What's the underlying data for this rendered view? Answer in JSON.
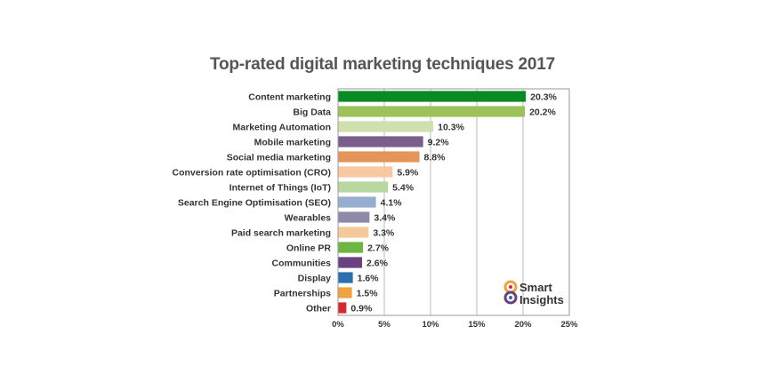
{
  "chart_data": {
    "type": "bar",
    "orientation": "horizontal",
    "title": "Top-rated digital marketing techniques 2017",
    "xlabel": "",
    "ylabel": "",
    "xlim": [
      0,
      25
    ],
    "x_ticks": [
      "0%",
      "5%",
      "10%",
      "15%",
      "20%",
      "25%"
    ],
    "grid": true,
    "categories": [
      "Content marketing",
      "Big Data",
      "Marketing Automation",
      "Mobile marketing",
      "Social media marketing",
      "Conversion rate optimisation (CRO)",
      "Internet of Things (IoT)",
      "Search Engine Optimisation (SEO)",
      "Wearables",
      "Paid search marketing",
      "Online PR",
      "Communities",
      "Display",
      "Partnerships",
      "Other"
    ],
    "values": [
      20.3,
      20.2,
      10.3,
      9.2,
      8.8,
      5.9,
      5.4,
      4.1,
      3.4,
      3.3,
      2.7,
      2.6,
      1.6,
      1.5,
      0.9
    ],
    "value_labels": [
      "20.3%",
      "20.2%",
      "10.3%",
      "9.2%",
      "8.8%",
      "5.9%",
      "5.4%",
      "4.1%",
      "3.4%",
      "3.3%",
      "2.7%",
      "2.6%",
      "1.6%",
      "1.5%",
      "0.9%"
    ],
    "colors": [
      "#0a8a22",
      "#9dc25a",
      "#cfe0ae",
      "#7b5e8c",
      "#e3955a",
      "#f7c8a2",
      "#b8d6a0",
      "#97aed0",
      "#8e8aa8",
      "#f5c99a",
      "#6db642",
      "#6b4182",
      "#2a6fb0",
      "#f0a23c",
      "#d9272e"
    ]
  },
  "logo": {
    "line1": "Smart",
    "line2": "Insights"
  }
}
